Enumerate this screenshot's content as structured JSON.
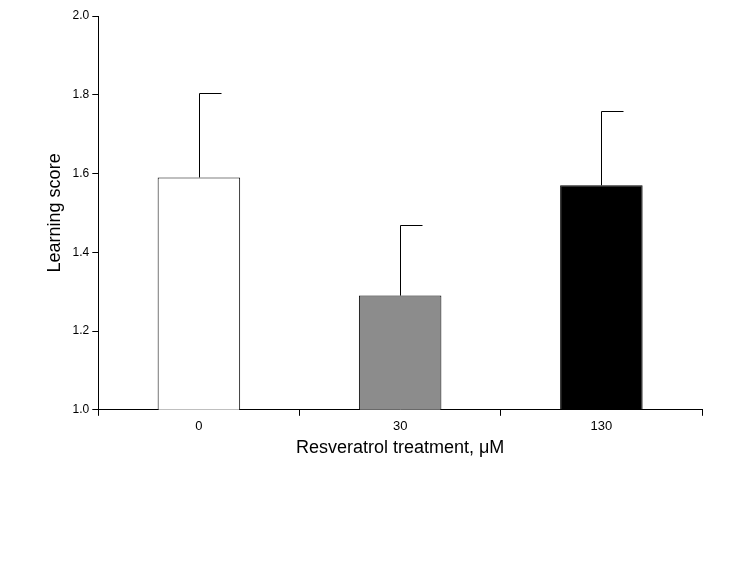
{
  "chart_data": {
    "type": "bar",
    "x_label": "Resveratrol treatment, μM",
    "y_label": "Learning score",
    "categories": [
      "0",
      "30",
      "130"
    ],
    "values": [
      1.59,
      1.29,
      1.57
    ],
    "errors": [
      0.215,
      0.18,
      0.19
    ],
    "colors": [
      "#ffffff",
      "#8c8c8c",
      "#000000"
    ],
    "ylim": [
      1.0,
      2.0
    ],
    "yticks": [
      {
        "value": 1.0,
        "label": "1.0"
      },
      {
        "value": 1.2,
        "label": "1.2"
      },
      {
        "value": 1.4,
        "label": "1.4"
      },
      {
        "value": 1.6,
        "label": "1.6"
      },
      {
        "value": 1.8,
        "label": "1.8"
      },
      {
        "value": 2.0,
        "label": "2.0"
      }
    ],
    "grid": false
  }
}
